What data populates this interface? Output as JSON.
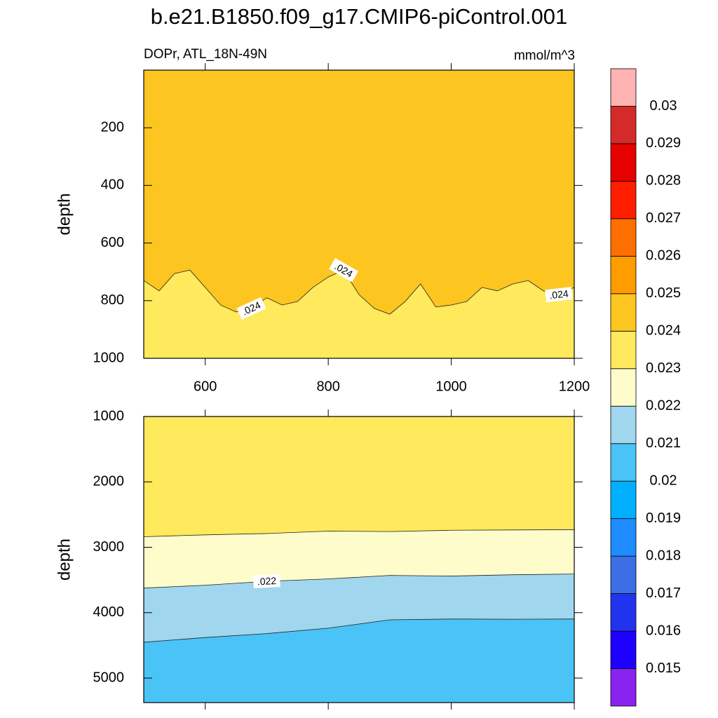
{
  "chart_data": {
    "type": "contour",
    "title": "b.e21.B1850.f09_g17.CMIP6-piControl.001",
    "subtitle": "DOPr, ATL_18N-49N",
    "units": "mmol/m^3",
    "y_reversed": true,
    "panels": [
      {
        "xlim": [
          500,
          1200
        ],
        "xticks": [
          600,
          800,
          1000,
          1200
        ],
        "show_xtick_labels": true,
        "ylim": [
          0,
          1000
        ],
        "yticks": [
          200,
          400,
          600,
          800,
          1000
        ],
        "ylabel": "depth",
        "contours": [
          {
            "level": 0.024,
            "label": ".024",
            "x": [
              500,
              525,
              550,
              575,
              600,
              625,
              650,
              675,
              700,
              725,
              750,
              775,
              800,
              825,
              850,
              875,
              900,
              925,
              950,
              975,
              1000,
              1025,
              1050,
              1075,
              1100,
              1125,
              1150,
              1175,
              1200
            ],
            "depth": [
              730,
              766,
              706,
              694,
              754,
              815,
              839,
              827,
              790,
              815,
              803,
              754,
              718,
              694,
              779,
              827,
              847,
              803,
              742,
              822,
              815,
              803,
              754,
              766,
              742,
              730,
              766,
              779,
              754
            ]
          }
        ]
      },
      {
        "xlim": [
          500,
          1200
        ],
        "xticks": [
          600,
          800,
          1000,
          1200
        ],
        "show_xtick_labels": false,
        "ylim": [
          1000,
          5375
        ],
        "yticks": [
          1000,
          2000,
          3000,
          4000,
          5000
        ],
        "ylabel": "depth",
        "contours": [
          {
            "level": 0.023,
            "label": null,
            "x": [
              500,
              600,
              700,
              800,
              900,
              1000,
              1100,
              1200
            ],
            "depth": [
              2839,
              2810,
              2790,
              2753,
              2760,
              2740,
              2735,
              2731
            ]
          },
          {
            "level": 0.022,
            "label": ".022",
            "x": [
              500,
              600,
              700,
              800,
              900,
              1000,
              1100,
              1200
            ],
            "depth": [
              3624,
              3580,
              3520,
              3484,
              3430,
              3440,
              3420,
              3409
            ]
          },
          {
            "level": 0.021,
            "label": null,
            "x": [
              500,
              600,
              700,
              800,
              900,
              1000,
              1100,
              1200
            ],
            "depth": [
              4452,
              4380,
              4320,
              4237,
              4110,
              4097,
              4100,
              4097
            ]
          }
        ]
      }
    ],
    "colorbar": {
      "levels": [
        0.015,
        0.016,
        0.017,
        0.018,
        0.019,
        0.02,
        0.021,
        0.022,
        0.023,
        0.024,
        0.025,
        0.026,
        0.027,
        0.028,
        0.029,
        0.03
      ],
      "colors": [
        "#8a22f0",
        "#1e00ff",
        "#2233ee",
        "#3c6fe5",
        "#1e8cff",
        "#00b0ff",
        "#4ac3f6",
        "#a0d6ee",
        "#fffccc",
        "#ffe95c",
        "#fdc520",
        "#ff9c00",
        "#ff6f00",
        "#ff1e00",
        "#e60000",
        "#d42a2a",
        "#ffb3b3"
      ]
    }
  }
}
